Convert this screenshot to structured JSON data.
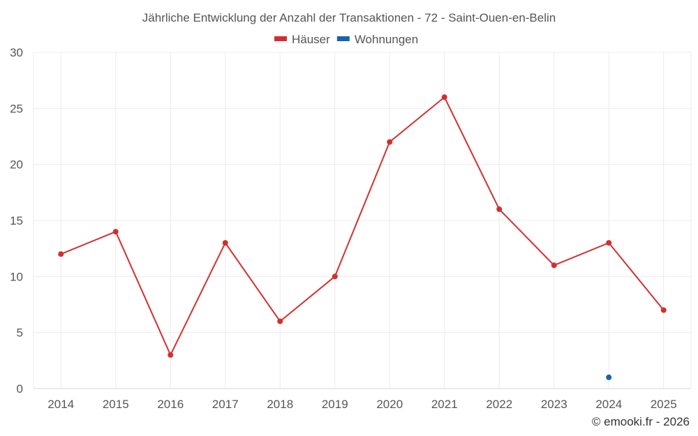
{
  "chart_data": {
    "type": "line",
    "title": "Jährliche Entwicklung der Anzahl der Transaktionen - 72 - Saint-Ouen-en-Belin",
    "categories": [
      "2014",
      "2015",
      "2016",
      "2017",
      "2018",
      "2019",
      "2020",
      "2021",
      "2022",
      "2023",
      "2024",
      "2025"
    ],
    "series": [
      {
        "name": "Häuser",
        "color": "#d32f2f",
        "values": [
          12,
          14,
          3,
          13,
          6,
          10,
          22,
          26,
          16,
          11,
          13,
          7
        ]
      },
      {
        "name": "Wohnungen",
        "color": "#1565a8",
        "values": [
          null,
          null,
          null,
          null,
          null,
          null,
          null,
          null,
          null,
          null,
          1,
          null
        ]
      }
    ],
    "ylim": [
      0,
      30
    ],
    "yticks": [
      0,
      5,
      10,
      15,
      20,
      25,
      30
    ],
    "grid": true,
    "legend_position": "top-center"
  },
  "footer": {
    "copyright": "© emooki.fr - 2026"
  }
}
